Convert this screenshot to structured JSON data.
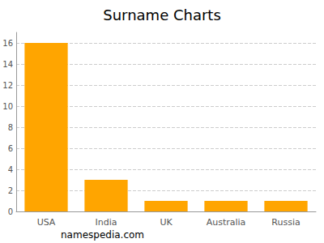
{
  "chart_data": {
    "type": "bar",
    "title": "Surname Charts",
    "categories": [
      "USA",
      "India",
      "UK",
      "Australia",
      "Russia"
    ],
    "values": [
      16,
      3,
      1,
      1,
      1
    ],
    "color": "#ffa500",
    "ylim": [
      0,
      17
    ],
    "yticks": [
      0,
      2,
      4,
      6,
      8,
      10,
      12,
      14,
      16
    ],
    "grid": true,
    "source": "namespedia.com"
  }
}
